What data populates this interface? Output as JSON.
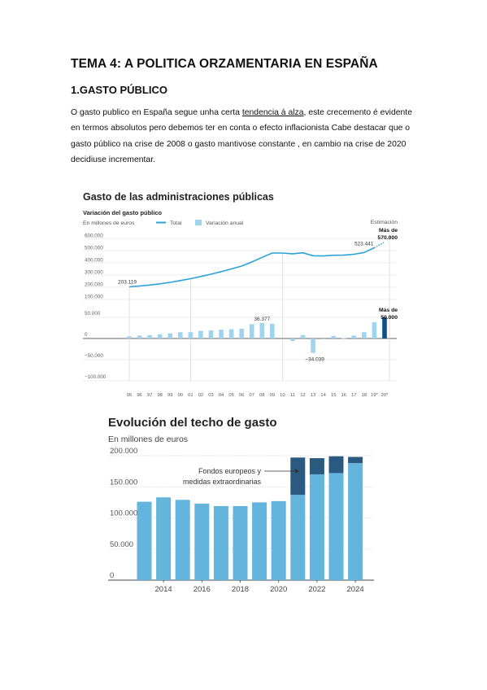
{
  "document": {
    "title": "TEMA 4: A POLITICA ORZAMENTARIA EN ESPAÑA",
    "section_heading": "1.GASTO PÚBLICO",
    "paragraph": {
      "part1": "O gasto publico en España segue unha certa ",
      "underlined": "tendencia á alza",
      "part2": ", este crecemento é evidente en termos absolutos pero debemos ter en conta o efecto inflacionista  Cabe destacar que o gasto público na crise de 2008 o gasto mantivose constante , en cambio na crise de 2020 decidiuse incrementar."
    }
  },
  "chart_data": [
    {
      "type": "line+bar",
      "title": "Gasto de las administraciones públicas",
      "subtitle": "Variación del gasto público",
      "unit_label": "En millones de euros",
      "legend": [
        {
          "name": "Total",
          "style": "line",
          "color": "#2aa3d8"
        },
        {
          "name": "Variación anual",
          "style": "bar",
          "color": "#9fd3ee"
        }
      ],
      "estimation_label": "Estimación",
      "categories": [
        "95",
        "96",
        "97",
        "98",
        "99",
        "00",
        "01",
        "02",
        "03",
        "04",
        "05",
        "06",
        "07",
        "08",
        "09",
        "10",
        "11",
        "12",
        "13",
        "14",
        "15",
        "16",
        "17",
        "18",
        "19*",
        "20*"
      ],
      "total_series": {
        "name": "Total",
        "values": [
          203119,
          210000,
          218000,
          228000,
          240000,
          255000,
          270000,
          288000,
          307000,
          328000,
          350000,
          373000,
          407000,
          445000,
          480000,
          480000,
          474000,
          482000,
          458000,
          456000,
          462000,
          463000,
          470000,
          485000,
          523441,
          570000
        ]
      },
      "annual_variation_series": {
        "name": "Variación anual",
        "values": [
          5000,
          7000,
          8000,
          10000,
          12000,
          15000,
          15000,
          18000,
          19000,
          21000,
          22000,
          23000,
          34000,
          36377,
          35000,
          0,
          -6000,
          8000,
          -34039,
          -2000,
          6000,
          1000,
          7000,
          15000,
          38441,
          50000
        ]
      },
      "annotations": {
        "start_total": "203.119",
        "total_2019": "523.441",
        "peak_var": "36.377",
        "min_var": "−34.039",
        "est_total_line1": "Más de",
        "est_total_line2": "570.000",
        "est_var_line1": "Más de",
        "est_var_line2": "50.000"
      },
      "upper_y_ticks": [
        "600.000",
        "500.000",
        "400.000",
        "300.000",
        "200.000",
        "100.000"
      ],
      "lower_y_ticks": [
        "50.000",
        "0",
        "−50.000",
        "−100.000"
      ],
      "upper_ylim": [
        100000,
        600000
      ],
      "lower_ylim": [
        -100000,
        50000
      ],
      "colors": {
        "line": "#2aa3d8",
        "bar": "#9fd3ee",
        "bar_estimate": "#0d4f8b"
      }
    },
    {
      "type": "bar",
      "title": "Evolución del techo de gasto",
      "unit_label": "En millones de euros",
      "x": [
        2013,
        2014,
        2015,
        2016,
        2017,
        2018,
        2019,
        2020,
        2021,
        2022,
        2023,
        2024
      ],
      "series": [
        {
          "name": "",
          "values": [
            126000,
            133000,
            129000,
            123000,
            119000,
            119000,
            125000,
            127000,
            137000,
            170000,
            172000,
            188000
          ]
        },
        {
          "name": "Fondos europeos y medidas extraordinarias",
          "values": [
            0,
            0,
            0,
            0,
            0,
            0,
            0,
            0,
            60000,
            26000,
            27000,
            10000
          ]
        }
      ],
      "x_tick_labels": [
        "2014",
        "2016",
        "2018",
        "2020",
        "2022",
        "2024"
      ],
      "y_ticks": [
        "200.000",
        "150.000",
        "100.000",
        "50.000",
        "0"
      ],
      "ylim": [
        0,
        200000
      ],
      "annotation_line1": "Fondos europeos y",
      "annotation_line2": "medidas extraordinarias",
      "colors": {
        "base": "#63b5de",
        "extra": "#2b5a80"
      }
    }
  ]
}
